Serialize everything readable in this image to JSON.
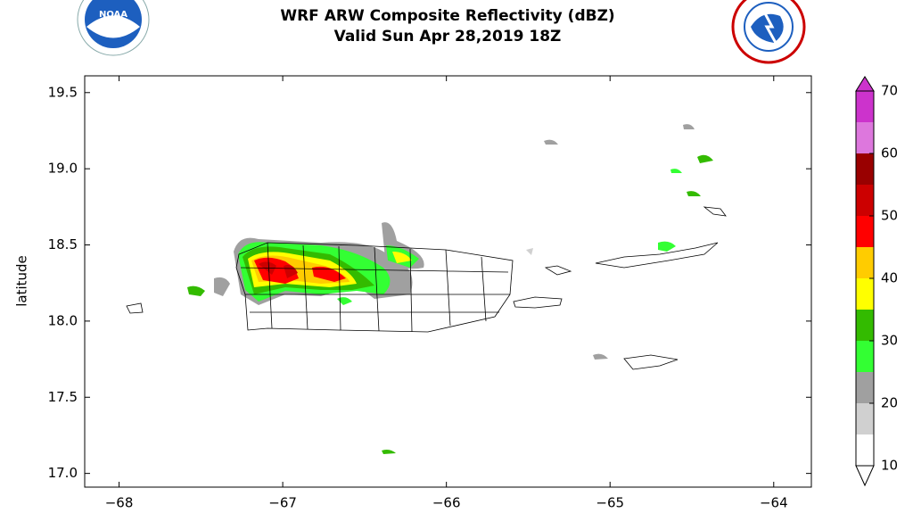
{
  "map": {
    "type": "contour-map",
    "title": [
      "WRF ARW Composite Reflectivity (dBZ)",
      "Valid Sun Apr 28,2019 18Z"
    ],
    "logo_text": "NOAA",
    "ylabel": "latitude",
    "xlim": [
      -68.21,
      -63.77
    ],
    "ylim": [
      16.91,
      19.61
    ],
    "xticks": [
      {
        "value": -68,
        "label": "−68"
      },
      {
        "value": -67,
        "label": "−67"
      },
      {
        "value": -66,
        "label": "−66"
      },
      {
        "value": -65,
        "label": "−65"
      },
      {
        "value": -64,
        "label": "−64"
      }
    ],
    "yticks": [
      {
        "value": 17,
        "label": "17.0"
      },
      17.5,
      {
        "value": 18,
        "label": "18.0"
      },
      18.5,
      {
        "value": 19,
        "label": "19.0"
      },
      19.5
    ],
    "colorbar": {
      "levels": [
        10,
        15,
        20,
        25,
        30,
        35,
        40,
        45,
        50,
        55,
        60,
        65,
        70
      ],
      "colors": [
        "#ffffff",
        "#d0d0d0",
        "#a0a0a0",
        "#33ff33",
        "#33bb00",
        "#ffff00",
        "#ffcc00",
        "#ff0000",
        "#cc0000",
        "#990000",
        "#dd77dd",
        "#cc33cc"
      ],
      "ticks": [
        10,
        20,
        30,
        40,
        50,
        60,
        70
      ],
      "extend": "both"
    }
  }
}
